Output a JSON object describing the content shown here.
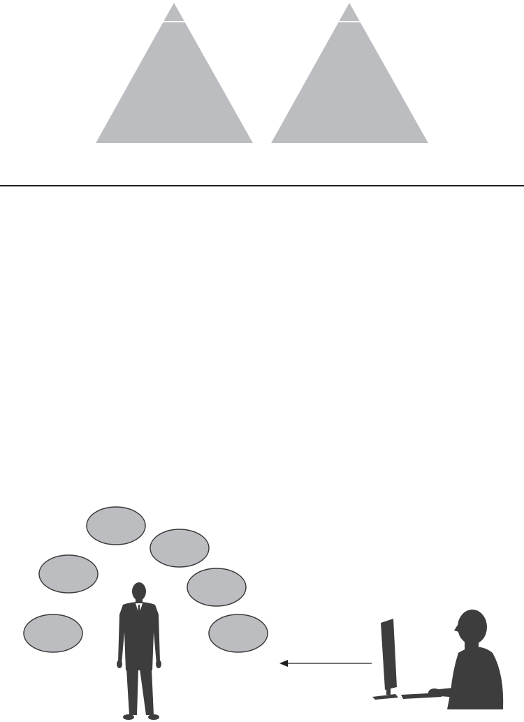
{
  "colors": {
    "background": "#ffffff",
    "shape_fill": "#bcbdc0",
    "shape_stroke": "#3a3a3a",
    "silhouette": "#3d3d3d",
    "separator": "#1e1e1e",
    "tip_line": "#ffffff"
  },
  "top_figure": {
    "pyramids": [
      {
        "name": "pyramid-left",
        "tip": "separated-apex"
      },
      {
        "name": "pyramid-right",
        "tip": "separated-apex"
      }
    ]
  },
  "bottom_figure": {
    "bubble_count": 6,
    "icons": [
      "business-person-icon",
      "computer-user-icon"
    ],
    "arrow": {
      "from": "computer-user-icon",
      "to": "business-person-icon"
    }
  }
}
